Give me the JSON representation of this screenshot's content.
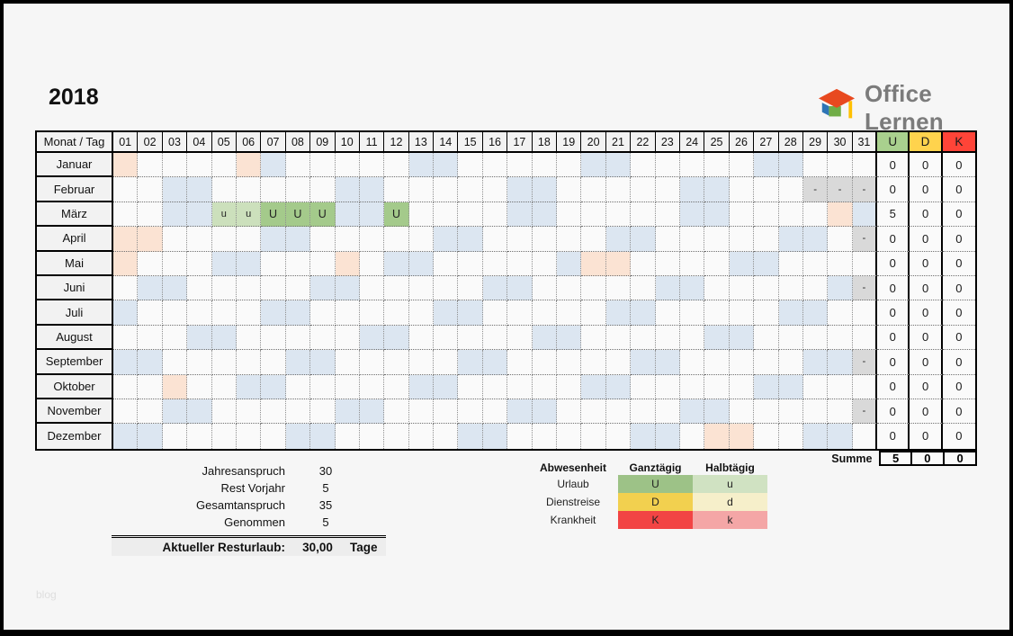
{
  "page": {
    "year": "2018",
    "watermark": "blog"
  },
  "logo": {
    "text": "Office Lernen"
  },
  "colors": {
    "weekend": "#dce6f1",
    "holiday": "#fbe3d3",
    "invalid": "#d9d9d9",
    "vac_full": "#a4ca8b",
    "vac_half": "#cce0bc"
  },
  "calendar": {
    "corner": "Monat / Tag",
    "days": [
      "01",
      "02",
      "03",
      "04",
      "05",
      "06",
      "07",
      "08",
      "09",
      "10",
      "11",
      "12",
      "13",
      "14",
      "15",
      "16",
      "17",
      "18",
      "19",
      "20",
      "21",
      "22",
      "23",
      "24",
      "25",
      "26",
      "27",
      "28",
      "29",
      "30",
      "31"
    ],
    "sum_cols": [
      {
        "label": "U",
        "color": "#a9d08e"
      },
      {
        "label": "D",
        "color": "#ffd34d"
      },
      {
        "label": "K",
        "color": "#ff4438"
      }
    ],
    "months": [
      {
        "name": "Januar",
        "holidays": [
          1,
          6
        ],
        "weekends": [
          7,
          13,
          14,
          20,
          21,
          27,
          28
        ],
        "invalid": [],
        "entries": {},
        "sums": [
          "0",
          "0",
          "0"
        ]
      },
      {
        "name": "Februar",
        "holidays": [],
        "weekends": [
          3,
          4,
          10,
          11,
          17,
          18,
          24,
          25
        ],
        "invalid": [
          29,
          30,
          31
        ],
        "entries": {},
        "sums": [
          "0",
          "0",
          "0"
        ]
      },
      {
        "name": "März",
        "holidays": [
          30
        ],
        "weekends": [
          3,
          4,
          10,
          11,
          17,
          18,
          24,
          25,
          31
        ],
        "invalid": [],
        "entries": {
          "5": "u",
          "6": "u",
          "7": "U",
          "8": "U",
          "9": "U",
          "12": "U"
        },
        "sums": [
          "5",
          "0",
          "0"
        ]
      },
      {
        "name": "April",
        "holidays": [
          1,
          2
        ],
        "weekends": [
          7,
          8,
          14,
          15,
          21,
          22,
          28,
          29
        ],
        "invalid": [
          31
        ],
        "entries": {},
        "sums": [
          "0",
          "0",
          "0"
        ]
      },
      {
        "name": "Mai",
        "holidays": [
          1,
          10,
          20,
          21
        ],
        "weekends": [
          5,
          6,
          12,
          13,
          19,
          26,
          27
        ],
        "invalid": [],
        "entries": {},
        "sums": [
          "0",
          "0",
          "0"
        ]
      },
      {
        "name": "Juni",
        "holidays": [],
        "weekends": [
          2,
          3,
          9,
          10,
          16,
          17,
          23,
          24,
          30
        ],
        "invalid": [
          31
        ],
        "entries": {},
        "sums": [
          "0",
          "0",
          "0"
        ]
      },
      {
        "name": "Juli",
        "holidays": [],
        "weekends": [
          1,
          7,
          8,
          14,
          15,
          21,
          22,
          28,
          29
        ],
        "invalid": [],
        "entries": {},
        "sums": [
          "0",
          "0",
          "0"
        ]
      },
      {
        "name": "August",
        "holidays": [],
        "weekends": [
          4,
          5,
          11,
          12,
          18,
          19,
          25,
          26
        ],
        "invalid": [],
        "entries": {},
        "sums": [
          "0",
          "0",
          "0"
        ]
      },
      {
        "name": "September",
        "holidays": [],
        "weekends": [
          1,
          2,
          8,
          9,
          15,
          16,
          22,
          23,
          29,
          30
        ],
        "invalid": [
          31
        ],
        "entries": {},
        "sums": [
          "0",
          "0",
          "0"
        ]
      },
      {
        "name": "Oktober",
        "holidays": [
          3
        ],
        "weekends": [
          6,
          7,
          13,
          14,
          20,
          21,
          27,
          28
        ],
        "invalid": [],
        "entries": {},
        "sums": [
          "0",
          "0",
          "0"
        ]
      },
      {
        "name": "November",
        "holidays": [],
        "weekends": [
          3,
          4,
          10,
          11,
          17,
          18,
          24,
          25
        ],
        "invalid": [
          31
        ],
        "entries": {},
        "sums": [
          "0",
          "0",
          "0"
        ]
      },
      {
        "name": "Dezember",
        "holidays": [
          25,
          26
        ],
        "weekends": [
          1,
          2,
          8,
          9,
          15,
          16,
          22,
          23,
          29,
          30
        ],
        "invalid": [],
        "entries": {},
        "sums": [
          "0",
          "0",
          "0"
        ]
      }
    ],
    "summe_label": "Summe",
    "summe_values": [
      "5",
      "0",
      "0"
    ]
  },
  "stats": {
    "rows": [
      {
        "label": "Jahresanspruch",
        "value": "30"
      },
      {
        "label": "Rest Vorjahr",
        "value": "5"
      },
      {
        "label": "Gesamtanspruch",
        "value": "35"
      },
      {
        "label": "Genommen",
        "value": "5"
      }
    ],
    "result": {
      "label": "Aktueller Resturlaub:",
      "value": "30,00",
      "unit": "Tage"
    }
  },
  "legend": {
    "headers": [
      "Abwesenheit",
      "Ganztägig",
      "Halbtägig"
    ],
    "rows": [
      {
        "name": "Urlaub",
        "full": "U",
        "half": "u",
        "full_color": "#9dc287",
        "half_color": "#d0e2c2"
      },
      {
        "name": "Dienstreise",
        "full": "D",
        "half": "d",
        "full_color": "#f2d04f",
        "half_color": "#f6efca"
      },
      {
        "name": "Krankheit",
        "full": "K",
        "half": "k",
        "full_color": "#f24444",
        "half_color": "#f4a6a6"
      }
    ]
  }
}
